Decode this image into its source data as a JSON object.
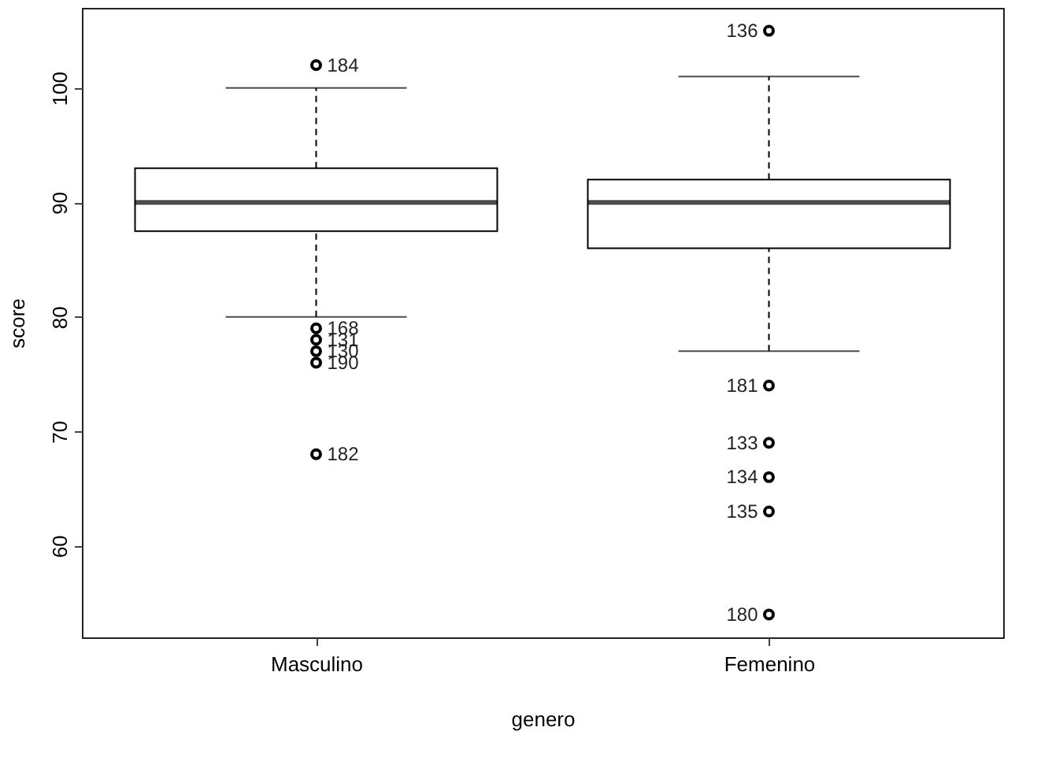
{
  "chart_data": {
    "type": "box",
    "xlabel": "genero",
    "ylabel": "score",
    "categories": [
      "Masculino",
      "Femenino"
    ],
    "boxes": [
      {
        "low": 80,
        "q1": 87.5,
        "median": 90,
        "q3": 93,
        "high": 100,
        "outliers": [
          102,
          79,
          78,
          77,
          76,
          68
        ]
      },
      {
        "low": 77,
        "q1": 86,
        "median": 90,
        "q3": 92,
        "high": 101,
        "outliers": [
          105,
          74,
          69,
          66,
          63,
          54
        ]
      }
    ],
    "ylim": [
      52,
      107
    ],
    "yticks": [
      60,
      70,
      80,
      90,
      100
    ],
    "grid": false,
    "line_style": "dashed",
    "marker": "circle",
    "color": "#000000",
    "annotations": [
      "184",
      "168",
      "131",
      "130",
      "190",
      "182",
      "136",
      "181",
      "133",
      "134",
      "135",
      "180"
    ]
  }
}
